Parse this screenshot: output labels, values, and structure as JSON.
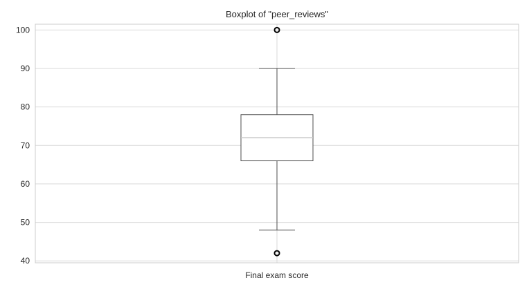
{
  "chart_data": {
    "type": "boxplot",
    "title": "Boxplot of \"peer_reviews\"",
    "categories": [
      "Final exam score"
    ],
    "xlabel": "",
    "ylabel": "",
    "ylim": [
      39.5,
      101.5
    ],
    "yticks": [
      40,
      50,
      60,
      70,
      80,
      90,
      100
    ],
    "grid": true,
    "boxes": [
      {
        "category": "Final exam score",
        "q1": 66,
        "median": 72,
        "q3": 78,
        "whisker_low": 48,
        "whisker_high": 90,
        "outliers": [
          42,
          100
        ]
      }
    ],
    "colors": {
      "grid": "#d9d9d9",
      "axes_edge": "#cccccc",
      "box": "#4d4d4d",
      "median": "#c8c8c8",
      "text": "#262626",
      "outlier_edge": "#000000"
    }
  }
}
